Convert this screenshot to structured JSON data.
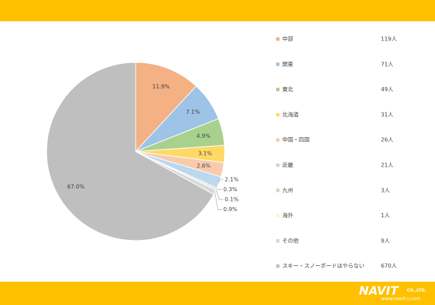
{
  "chart_data": {
    "type": "pie",
    "categories": [
      "中部",
      "関東",
      "東北",
      "北海道",
      "中国・四国",
      "近畿",
      "九州",
      "海外",
      "その他",
      "スキー・スノーボードはやらない"
    ],
    "values": [
      11.9,
      7.1,
      4.9,
      3.1,
      2.6,
      2.1,
      0.3,
      0.1,
      0.9,
      67
    ],
    "value_labels": [
      "11.9%",
      "7.1%",
      "4.9%",
      "3.1%",
      "2.6%",
      "2.1%",
      "0.3%",
      "0.1%",
      "0.9%",
      "67.0%"
    ],
    "legend_labels": [
      "119人",
      "71人",
      "49人",
      "31人",
      "26人",
      "21人",
      "3人",
      "1人",
      "9人",
      "670人"
    ],
    "colors": [
      "#f4b183",
      "#9dc3e6",
      "#a9d18e",
      "#ffd966",
      "#f8cbad",
      "#bdd7ee",
      "#c5e0b4",
      "#fff2cc",
      "#d9d9d9",
      "#bfbfbf"
    ],
    "legend": "right"
  },
  "footer": {
    "brand": "NAVIT",
    "company": "CO.,LTD.",
    "url": "www.navit-j.com"
  }
}
